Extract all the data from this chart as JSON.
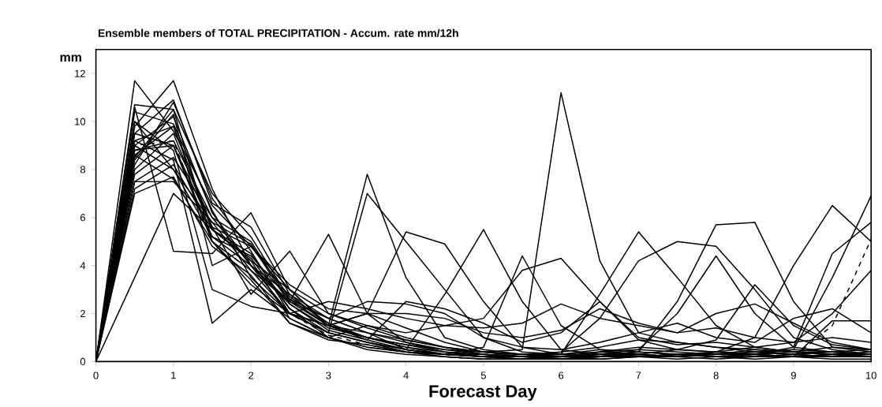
{
  "chart_data": {
    "type": "line",
    "title": "Ensemble members of TOTAL PRECIPITATION - Accum. rate mm/12h",
    "xlabel": "Forecast Day",
    "ylabel": "mm",
    "x": [
      0,
      0.5,
      1,
      1.5,
      2,
      2.5,
      3,
      3.5,
      4,
      4.5,
      5,
      5.5,
      6,
      6.5,
      7,
      7.5,
      8,
      8.5,
      9,
      9.5,
      10
    ],
    "xlim": [
      0,
      10
    ],
    "ylim": [
      0,
      13
    ],
    "xticks": [
      0,
      1,
      2,
      3,
      4,
      5,
      6,
      7,
      8,
      9,
      10
    ],
    "yticks": [
      0,
      2,
      4,
      6,
      8,
      10,
      12
    ],
    "line_style": "solid",
    "series": [
      {
        "color": "#000000",
        "values": [
          0,
          11.7,
          9.6,
          6.5,
          4.8,
          3.0,
          2.0,
          1.5,
          1.0,
          0.6,
          0.3,
          0.2,
          0.2,
          0.3,
          0.5,
          0.4,
          0.3,
          0.5,
          0.4,
          0.6,
          0.5
        ]
      },
      {
        "color": "#000000",
        "values": [
          0,
          9.8,
          11.7,
          7.2,
          4.0,
          2.8,
          1.8,
          1.2,
          0.8,
          0.5,
          0.3,
          0.2,
          0.3,
          0.2,
          0.2,
          0.3,
          0.4,
          0.3,
          0.2,
          0.3,
          0.4
        ]
      },
      {
        "color": "#000000",
        "values": [
          0,
          3.5,
          7.0,
          5.5,
          4.2,
          3.0,
          1.5,
          1.0,
          0.6,
          0.3,
          0.2,
          0.1,
          0.2,
          0.3,
          0.2,
          0.1,
          0.2,
          0.3,
          0.4,
          0.3,
          0.2
        ]
      },
      {
        "color": "#000000",
        "values": [
          0,
          10.6,
          4.6,
          4.5,
          6.2,
          3.0,
          1.5,
          2.0,
          1.4,
          0.8,
          0.4,
          0.2,
          0.1,
          0.2,
          0.4,
          0.3,
          0.2,
          0.3,
          0.5,
          0.4,
          0.3
        ]
      },
      {
        "color": "#000000",
        "values": [
          0,
          8.5,
          10.5,
          5.0,
          3.2,
          2.0,
          1.5,
          1.2,
          0.9,
          0.6,
          0.4,
          0.5,
          11.2,
          4.2,
          1.2,
          0.8,
          0.6,
          0.4,
          0.3,
          0.2,
          0.2
        ]
      },
      {
        "color": "#000000",
        "values": [
          0,
          9.0,
          8.0,
          5.8,
          3.8,
          2.5,
          1.5,
          7.8,
          3.5,
          1.0,
          0.5,
          0.3,
          0.2,
          0.2,
          0.3,
          0.2,
          0.4,
          0.3,
          0.2,
          0.3,
          0.3
        ]
      },
      {
        "color": "#000000",
        "values": [
          0,
          8.0,
          9.5,
          5.5,
          4.5,
          2.2,
          1.2,
          7.0,
          5.0,
          3.0,
          1.0,
          0.4,
          0.3,
          0.5,
          0.4,
          0.3,
          0.2,
          0.2,
          0.3,
          0.4,
          0.5
        ]
      },
      {
        "color": "#000000",
        "values": [
          0,
          7.5,
          8.5,
          6.0,
          5.0,
          2.5,
          5.3,
          2.0,
          0.8,
          0.4,
          0.2,
          0.1,
          0.2,
          0.1,
          0.2,
          0.3,
          0.2,
          0.1,
          0.2,
          0.3,
          0.2
        ]
      },
      {
        "color": "#000000",
        "values": [
          0,
          9.5,
          9.0,
          5.0,
          3.8,
          2.0,
          1.5,
          2.0,
          5.4,
          4.9,
          2.5,
          0.6,
          0.3,
          0.2,
          0.2,
          0.3,
          0.2,
          0.3,
          0.2,
          0.2,
          0.3
        ]
      },
      {
        "color": "#000000",
        "values": [
          0,
          8.8,
          9.2,
          6.0,
          4.0,
          2.5,
          1.8,
          1.2,
          0.5,
          2.8,
          5.5,
          2.5,
          0.5,
          0.3,
          0.2,
          0.3,
          0.3,
          0.4,
          0.3,
          0.2,
          0.2
        ]
      },
      {
        "color": "#000000",
        "values": [
          0,
          7.2,
          8.2,
          5.5,
          4.2,
          1.8,
          1.0,
          0.6,
          0.4,
          0.3,
          0.6,
          4.4,
          1.5,
          0.5,
          0.2,
          0.3,
          0.2,
          0.2,
          0.3,
          0.2,
          0.2
        ]
      },
      {
        "color": "#000000",
        "values": [
          0,
          9.2,
          9.8,
          5.5,
          4.3,
          2.2,
          1.0,
          1.5,
          1.2,
          1.5,
          1.8,
          3.8,
          4.3,
          2.5,
          1.0,
          0.7,
          0.8,
          0.6,
          0.4,
          0.3,
          0.2
        ]
      },
      {
        "color": "#000000",
        "values": [
          0,
          10.0,
          8.0,
          5.2,
          4.4,
          2.6,
          1.5,
          1.0,
          0.6,
          0.4,
          0.2,
          0.2,
          0.3,
          2.8,
          5.4,
          3.5,
          1.5,
          0.6,
          0.4,
          0.3,
          0.2
        ]
      },
      {
        "color": "#000000",
        "values": [
          0,
          8.2,
          10.8,
          6.8,
          4.6,
          2.0,
          1.2,
          0.8,
          0.5,
          0.3,
          0.3,
          0.2,
          0.4,
          1.8,
          4.2,
          5.0,
          4.8,
          3.0,
          1.0,
          0.5,
          0.3
        ]
      },
      {
        "color": "#000000",
        "values": [
          0,
          9.0,
          10.2,
          6.2,
          4.0,
          2.4,
          1.4,
          1.0,
          0.7,
          0.4,
          0.3,
          0.2,
          0.2,
          0.3,
          0.4,
          2.5,
          5.7,
          5.8,
          2.5,
          0.6,
          0.4
        ]
      },
      {
        "color": "#000000",
        "values": [
          0,
          7.8,
          9.0,
          5.6,
          4.8,
          2.7,
          1.6,
          1.0,
          0.7,
          0.5,
          0.4,
          0.3,
          0.3,
          0.4,
          0.5,
          2.0,
          4.4,
          2.0,
          0.6,
          0.4,
          0.3
        ]
      },
      {
        "color": "#000000",
        "values": [
          0,
          10.4,
          9.9,
          6.3,
          3.5,
          2.0,
          1.2,
          0.8,
          0.5,
          0.3,
          0.2,
          0.2,
          0.2,
          0.3,
          0.3,
          0.5,
          0.4,
          1.0,
          4.0,
          6.5,
          5.0
        ]
      },
      {
        "color": "#000000",
        "values": [
          0,
          8.6,
          7.6,
          5.0,
          3.4,
          1.6,
          1.0,
          0.6,
          0.4,
          0.3,
          0.2,
          0.2,
          0.1,
          0.2,
          0.3,
          0.2,
          0.3,
          0.4,
          0.5,
          3.5,
          6.9
        ]
      },
      {
        "color": "#000000",
        "values": [
          0,
          9.5,
          10.9,
          6.6,
          5.6,
          2.8,
          1.5,
          0.9,
          0.5,
          0.3,
          0.2,
          0.3,
          0.2,
          0.4,
          0.6,
          0.5,
          0.4,
          0.3,
          0.6,
          4.5,
          5.8
        ]
      },
      {
        "color": "#000000",
        "values": [
          0,
          7.0,
          7.7,
          4.8,
          3.6,
          1.6,
          0.9,
          0.7,
          0.4,
          0.3,
          0.2,
          0.1,
          0.2,
          0.4,
          0.3,
          0.2,
          0.4,
          0.6,
          0.8,
          2.0,
          3.8
        ]
      },
      {
        "color": "#000000",
        "values": [
          0,
          8.6,
          9.8,
          5.6,
          2.8,
          4.6,
          2.0,
          1.4,
          0.9,
          0.6,
          0.4,
          0.3,
          0.4,
          0.6,
          0.9,
          0.8,
          0.6,
          0.5,
          0.4,
          0.4,
          0.3
        ]
      },
      {
        "color": "#000000",
        "values": [
          0,
          9.2,
          8.4,
          1.6,
          3.0,
          1.8,
          1.0,
          0.5,
          0.3,
          0.2,
          0.1,
          0.1,
          0.1,
          0.2,
          0.3,
          0.2,
          0.1,
          0.2,
          0.2,
          0.1,
          0.1
        ]
      },
      {
        "color": "#000000",
        "values": [
          0,
          10.0,
          8.8,
          3.0,
          2.3,
          2.0,
          2.5,
          2.2,
          1.8,
          1.5,
          1.4,
          1.6,
          2.4,
          1.8,
          1.5,
          1.2,
          1.4,
          1.0,
          0.8,
          1.0,
          0.8
        ]
      },
      {
        "color": "#000000",
        "values": [
          0,
          8.4,
          10.3,
          4.0,
          4.8,
          3.2,
          2.2,
          2.0,
          2.0,
          1.8,
          1.2,
          1.0,
          1.3,
          2.2,
          1.6,
          1.2,
          2.0,
          2.4,
          1.6,
          0.8,
          0.5
        ]
      },
      {
        "color": "#000000",
        "values": [
          0,
          7.5,
          7.5,
          5.8,
          4.9,
          2.4,
          1.3,
          0.9,
          2.5,
          2.2,
          1.6,
          0.8,
          1.2,
          2.5,
          0.9,
          0.5,
          0.9,
          3.2,
          1.5,
          0.7,
          0.5
        ]
      },
      {
        "color": "#000000",
        "values": [
          0,
          10.7,
          10.5,
          7.0,
          5.2,
          2.6,
          1.8,
          2.5,
          2.4,
          2.0,
          1.0,
          0.6,
          0.5,
          0.8,
          1.2,
          1.6,
          1.0,
          0.8,
          1.8,
          2.2,
          1.2
        ]
      },
      {
        "color": "#000000",
        "values": [
          0,
          8.8,
          9.0,
          5.2,
          4.0,
          2.0,
          1.2,
          0.8,
          0.4,
          0.2,
          0.1,
          0.1,
          0.1,
          0.1,
          0.2,
          0.2,
          0.3,
          0.3,
          0.2,
          1.7,
          1.7
        ]
      },
      {
        "color": "#000000",
        "line_style": "dashed",
        "values": [
          0,
          9.0,
          9.2,
          5.0,
          3.8,
          2.0,
          1.1,
          0.7,
          0.4,
          0.2,
          0.1,
          0.1,
          0.1,
          0.2,
          0.3,
          0.2,
          0.3,
          0.2,
          0.2,
          1.5,
          5.1
        ]
      }
    ]
  }
}
